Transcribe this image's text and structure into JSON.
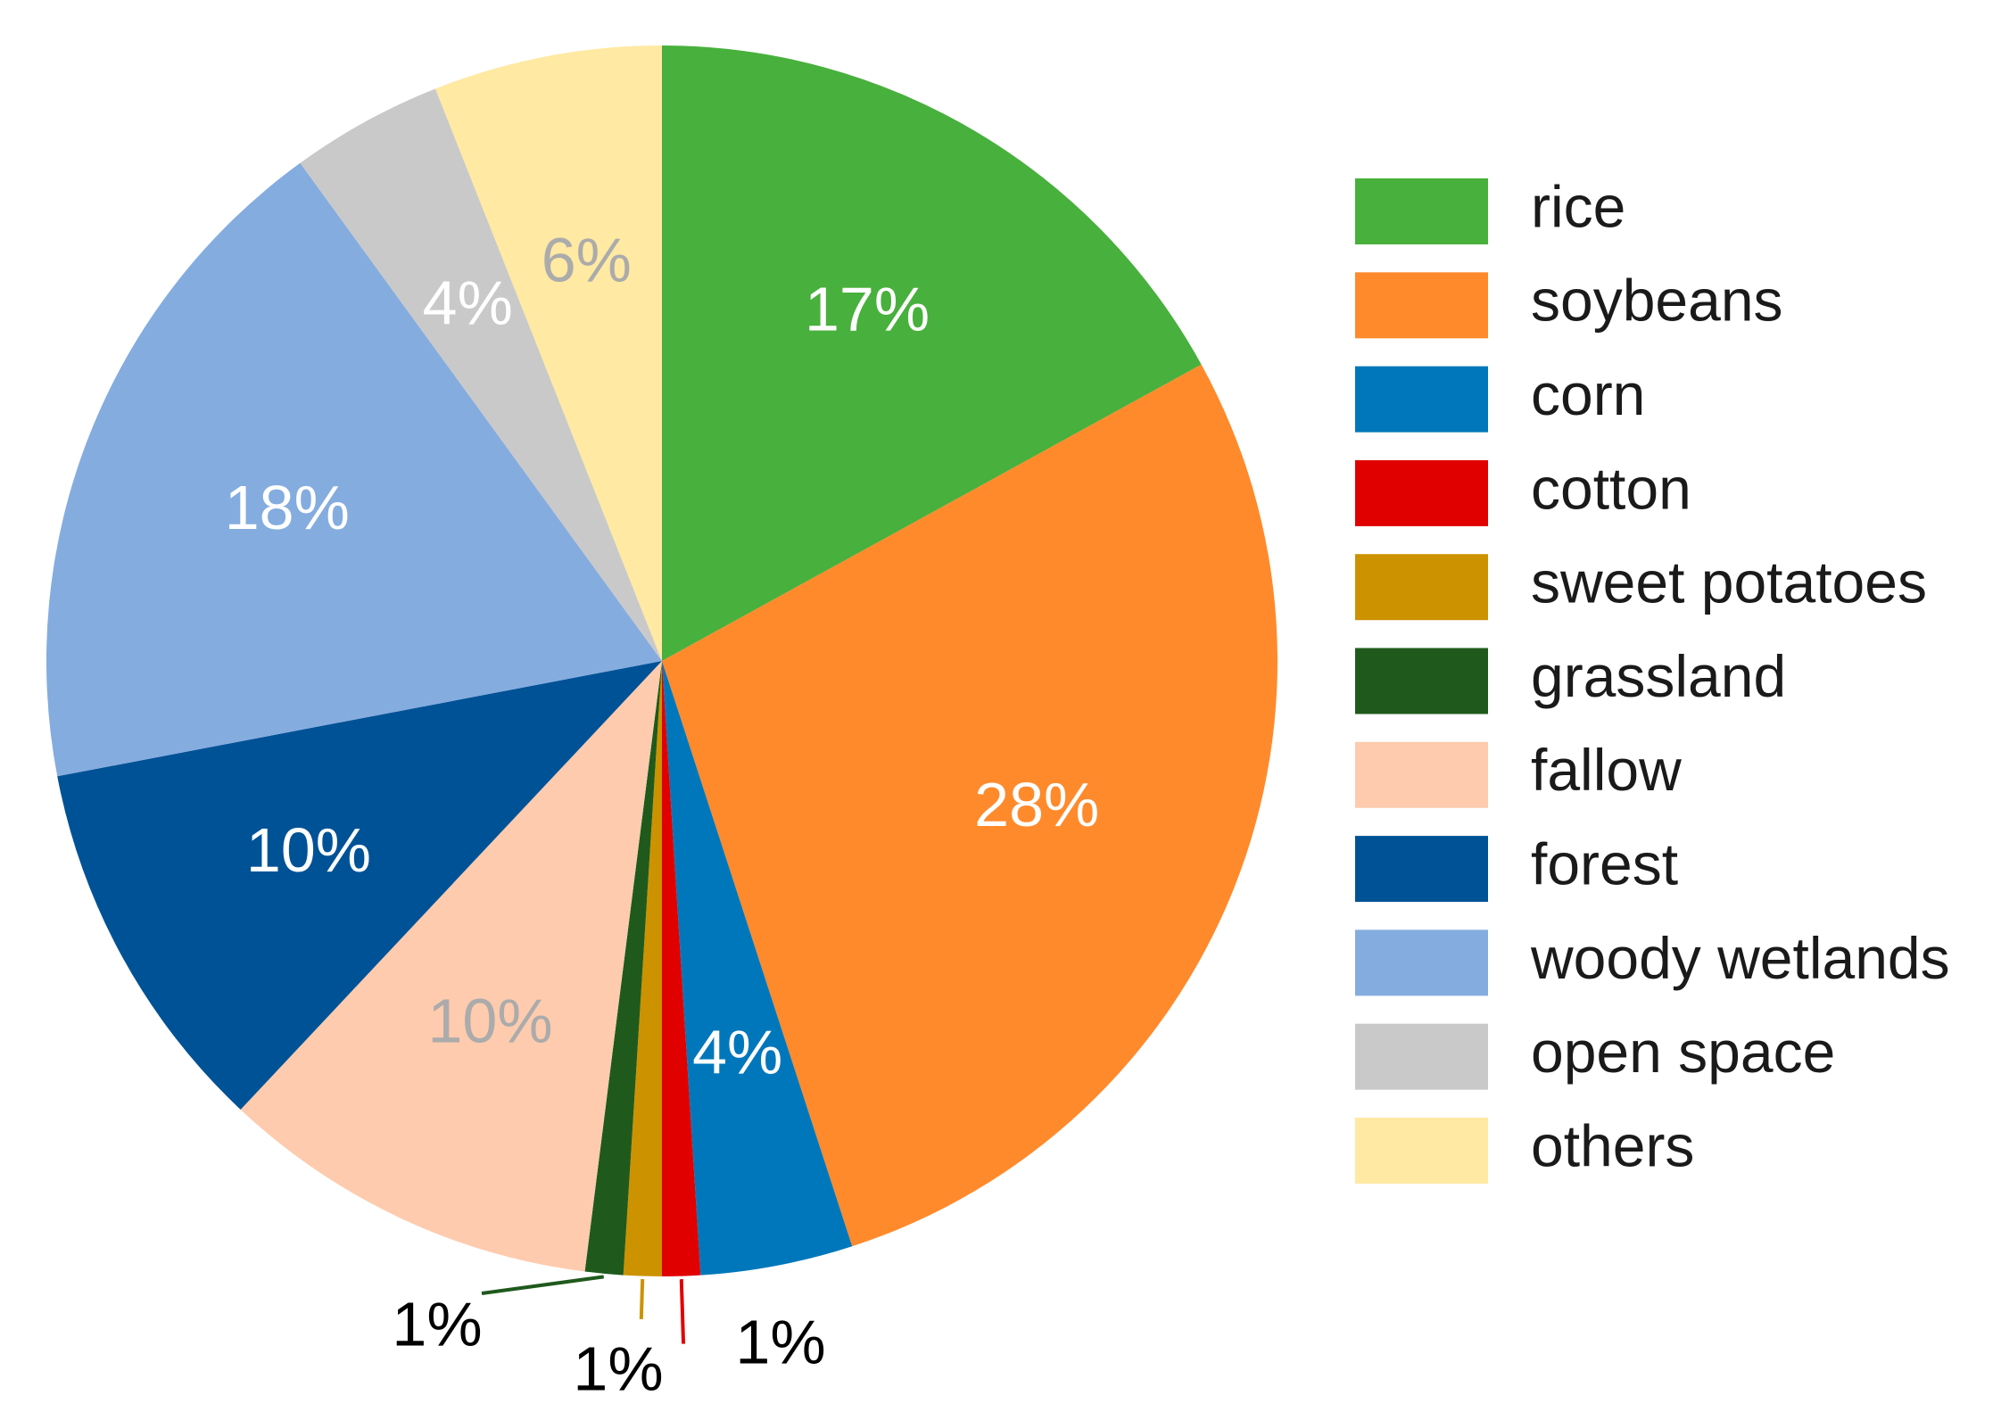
{
  "chart_data": {
    "type": "pie",
    "start_angle_deg": 0,
    "direction": "clockwise",
    "legend_position": "right",
    "categories": [
      "rice",
      "soybeans",
      "corn",
      "cotton",
      "sweet potatoes",
      "grassland",
      "fallow",
      "forest",
      "woody wetlands",
      "open space",
      "others"
    ],
    "values": [
      17,
      28,
      4,
      1,
      1,
      1,
      10,
      10,
      18,
      4,
      6
    ],
    "labels": [
      "17%",
      "28%",
      "4%",
      "1%",
      "1%",
      "1%",
      "10%",
      "10%",
      "18%",
      "4%",
      "6%"
    ],
    "colors": [
      "#48B03C",
      "#FF8A2C",
      "#0077BB",
      "#E00000",
      "#CC9200",
      "#1F5A1C",
      "#FECBAE",
      "#005296",
      "#84ACDF",
      "#C9C9C9",
      "#FFE9A3"
    ],
    "label_colors": [
      "#FFFFFF",
      "#FFFFFF",
      "#FFFFFF",
      "#000000",
      "#000000",
      "#000000",
      "#ABABAB",
      "#FFFFFF",
      "#FFFFFF",
      "#FFFFFF",
      "#ABABAB"
    ]
  }
}
